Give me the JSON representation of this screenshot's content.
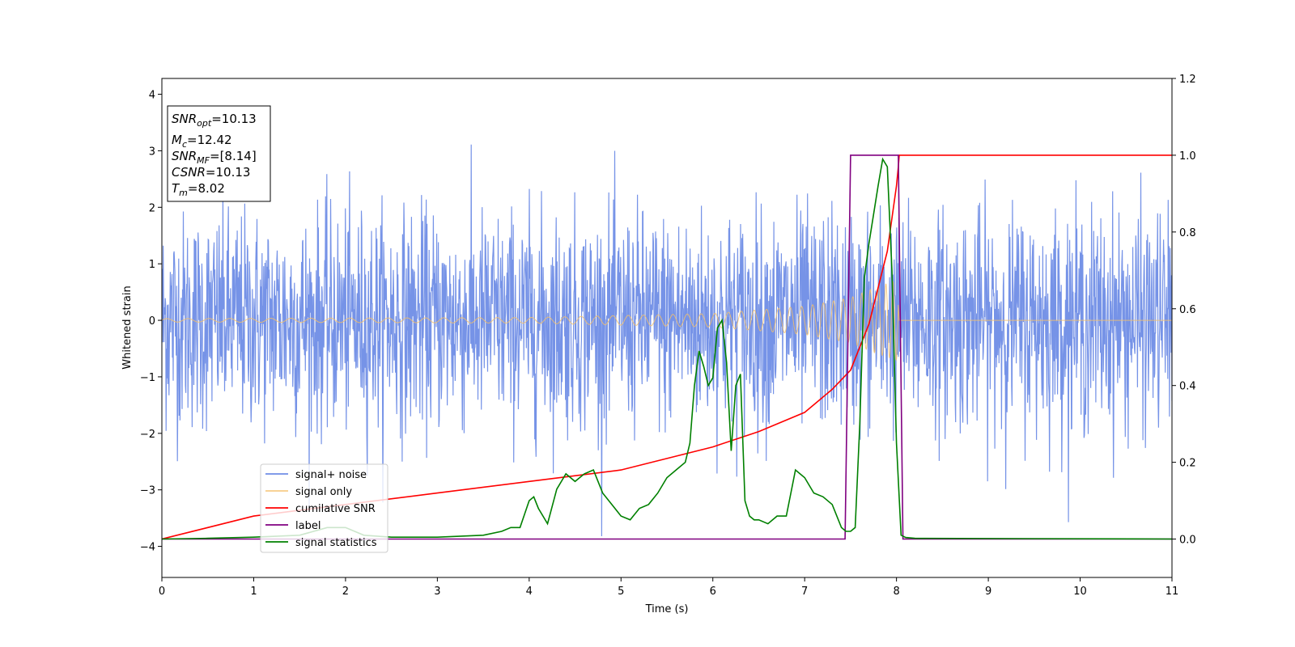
{
  "chart_data": {
    "type": "line",
    "title": "",
    "xlabel": "Time (s)",
    "ylabel": "Whitened strain",
    "y2label": "",
    "xlim": [
      0,
      11
    ],
    "ylim": [
      -4.55,
      4.28
    ],
    "y2lim": [
      -0.1,
      1.2
    ],
    "x_ticks": [
      "0",
      "1",
      "2",
      "3",
      "4",
      "5",
      "6",
      "7",
      "8",
      "9",
      "10",
      "11"
    ],
    "y_ticks": [
      "4",
      "3",
      "2",
      "1",
      "0",
      "−1",
      "−2",
      "−3",
      "−4"
    ],
    "y2_ticks": [
      "1.2",
      "1.0",
      "0.8",
      "0.6",
      "0.4",
      "0.2",
      "0.0"
    ],
    "grid": false,
    "legend_placement": "lower-left",
    "colors": {
      "noise": "#6f8de6",
      "signal": "#f5c06a",
      "csnr": "#ff0000",
      "label": "#800080",
      "stats": "#008000"
    },
    "series": [
      {
        "name": "signal+ noise",
        "axis": "left",
        "note_values": "noise band approx ±2 with spikes to ±3.9",
        "envelope": [
          2.2,
          2.2,
          2.2,
          2.2,
          2.2,
          2.2,
          2.2,
          2.2,
          2.2,
          2.2,
          2.2,
          2.2
        ]
      },
      {
        "name": "signal only",
        "axis": "left",
        "amplitude_x": [
          0,
          2,
          4,
          6,
          7,
          7.5,
          7.8,
          8.02,
          8.03,
          11
        ],
        "amplitude_y": [
          0.03,
          0.04,
          0.05,
          0.12,
          0.25,
          0.4,
          0.6,
          0.72,
          0,
          0
        ]
      },
      {
        "name": "cumilative SNR",
        "axis": "right",
        "x": [
          0,
          1,
          2,
          3,
          4,
          5,
          6,
          6.5,
          7,
          7.3,
          7.5,
          7.7,
          7.9,
          8.0,
          8.02,
          8.03,
          11
        ],
        "y": [
          0.0,
          0.06,
          0.09,
          0.12,
          0.15,
          0.18,
          0.24,
          0.28,
          0.33,
          0.39,
          0.44,
          0.56,
          0.75,
          0.92,
          0.97,
          1.0,
          1.0
        ]
      },
      {
        "name": "label",
        "axis": "right",
        "x": [
          0,
          7.44,
          7.5,
          8.02,
          8.07,
          11
        ],
        "y": [
          0,
          0,
          1,
          1,
          0,
          0
        ]
      },
      {
        "name": "signal statistics",
        "axis": "right",
        "x": [
          0,
          0.5,
          1,
          1.5,
          1.8,
          2.0,
          2.2,
          2.5,
          3,
          3.5,
          3.7,
          3.8,
          3.9,
          4.0,
          4.05,
          4.1,
          4.2,
          4.3,
          4.4,
          4.5,
          4.6,
          4.7,
          4.8,
          4.9,
          5.0,
          5.1,
          5.2,
          5.3,
          5.4,
          5.5,
          5.6,
          5.7,
          5.75,
          5.8,
          5.85,
          5.9,
          5.95,
          6.0,
          6.05,
          6.1,
          6.15,
          6.2,
          6.25,
          6.3,
          6.35,
          6.4,
          6.45,
          6.5,
          6.6,
          6.7,
          6.8,
          6.9,
          7.0,
          7.1,
          7.2,
          7.3,
          7.4,
          7.45,
          7.5,
          7.55,
          7.6,
          7.65,
          7.7,
          7.8,
          7.85,
          7.9,
          7.95,
          8.0,
          8.05,
          8.1,
          8.2,
          11
        ],
        "y": [
          0.0,
          0.002,
          0.005,
          0.01,
          0.03,
          0.03,
          0.01,
          0.005,
          0.005,
          0.01,
          0.02,
          0.03,
          0.03,
          0.1,
          0.11,
          0.08,
          0.04,
          0.13,
          0.17,
          0.15,
          0.17,
          0.18,
          0.12,
          0.09,
          0.06,
          0.05,
          0.08,
          0.09,
          0.12,
          0.16,
          0.18,
          0.2,
          0.25,
          0.4,
          0.49,
          0.45,
          0.4,
          0.42,
          0.55,
          0.57,
          0.46,
          0.23,
          0.4,
          0.43,
          0.1,
          0.06,
          0.05,
          0.05,
          0.04,
          0.06,
          0.06,
          0.18,
          0.16,
          0.12,
          0.11,
          0.09,
          0.03,
          0.02,
          0.02,
          0.03,
          0.3,
          0.68,
          0.77,
          0.92,
          0.99,
          0.97,
          0.7,
          0.25,
          0.01,
          0.004,
          0.002,
          0.0
        ]
      }
    ]
  },
  "info_box": {
    "lines": [
      {
        "main": "SNR",
        "sub": "opt",
        "rest": "=10.13"
      },
      {
        "main": "M",
        "sub": "c",
        "rest": "=12.42"
      },
      {
        "main": "SNR",
        "sub": "MF",
        "rest": "=[8.14]"
      },
      {
        "main": "CSNR",
        "sub": "",
        "rest": "=10.13"
      },
      {
        "main": "T",
        "sub": "m",
        "rest": "=8.02"
      }
    ]
  }
}
